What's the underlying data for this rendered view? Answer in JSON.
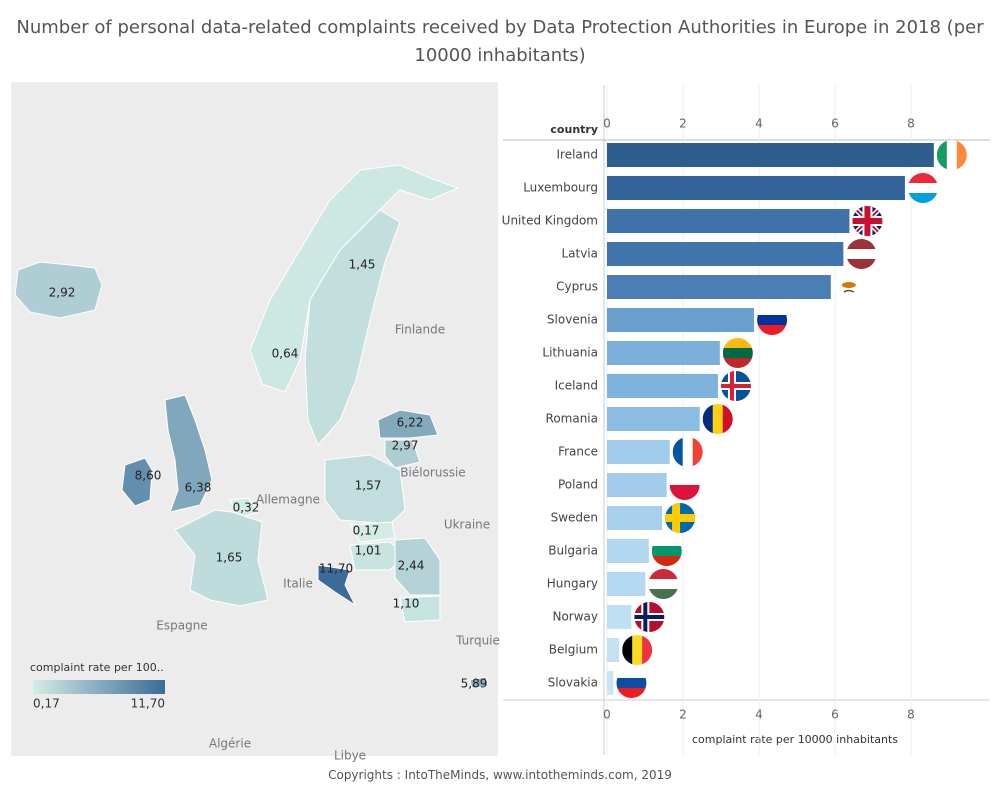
{
  "title": "Number of personal data-related complaints received by Data Protection Authorities in Europe in 2018 (per 10000 inhabitants)",
  "footer": "Copyrights : IntoTheMinds, www.intotheminds.com, 2019",
  "map": {
    "values": [
      2.92,
      0.64,
      1.45,
      6.22,
      2.97,
      8.6,
      6.38,
      0.32,
      1.57,
      0.17,
      1.01,
      11.7,
      2.44,
      1.1,
      1.65,
      5.89
    ],
    "value_labels": [
      "2,92",
      "0,64",
      "1,45",
      "6,22",
      "2,97",
      "8,60",
      "6,38",
      "0,32",
      "1,57",
      "0,17",
      "1,01",
      "11,70",
      "2,44",
      "1,10",
      "1,65",
      "5,89"
    ],
    "place_names": [
      "Finlande",
      "Biélorussie",
      "Allemagne",
      "Ukraine",
      "Italie",
      "Espagne",
      "Turquie",
      "Algérie",
      "Libye"
    ],
    "legend": {
      "title": "complaint rate per 100..",
      "min": {
        "value": 0.17,
        "label": "0,17"
      },
      "max": {
        "value": 11.7,
        "label": "11,70"
      },
      "colors": [
        "#d3ede6",
        "#3b6b98"
      ]
    }
  },
  "chart_data": {
    "type": "bar",
    "orientation": "horizontal",
    "y_axis_title": "country",
    "x_axis_title": "complaint rate per 10000 inhabitants",
    "categories": [
      "Ireland",
      "Luxembourg",
      "United Kingdom",
      "Latvia",
      "Cyprus",
      "Slovenia",
      "Lithuania",
      "Iceland",
      "Romania",
      "France",
      "Poland",
      "Sweden",
      "Bulgaria",
      "Hungary",
      "Norway",
      "Belgium",
      "Slovakia"
    ],
    "values": [
      8.6,
      7.84,
      6.38,
      6.22,
      5.89,
      3.87,
      2.97,
      2.92,
      2.44,
      1.65,
      1.57,
      1.45,
      1.1,
      1.01,
      0.64,
      0.32,
      0.17
    ],
    "colors": [
      "#2d5f8e",
      "#33659b",
      "#3e72a8",
      "#4074ac",
      "#4a7fb5",
      "#6a9fd0",
      "#7cb0da",
      "#7fb2dc",
      "#8bbce2",
      "#a0cbea",
      "#a2ccea",
      "#a7d0ec",
      "#b2d7f0",
      "#b4d8f0",
      "#bfdff3",
      "#c5e2f5",
      "#c9e5f6"
    ],
    "xlim": [
      0,
      10
    ],
    "xticks": [
      0,
      2,
      4,
      6,
      8
    ]
  }
}
